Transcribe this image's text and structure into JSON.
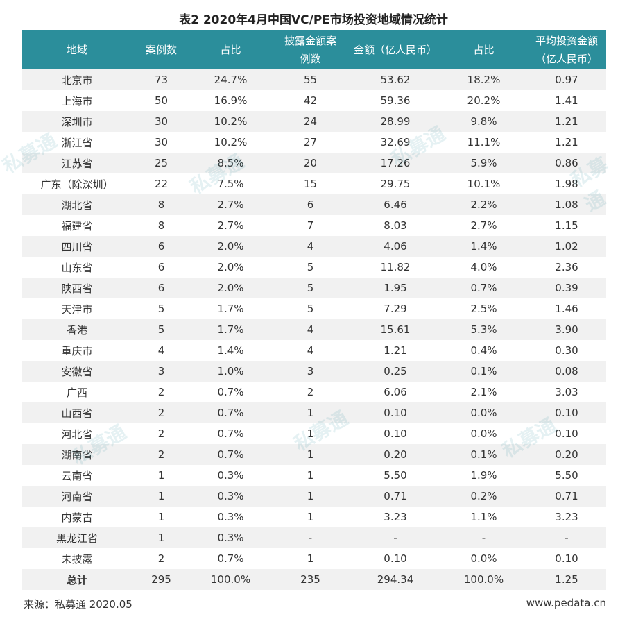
{
  "title": "表2  2020年4月中国VC/PE市场投资地域情况统计",
  "headers": [
    [
      "地域"
    ],
    [
      "案例数"
    ],
    [
      "占比"
    ],
    [
      "披露金额案",
      "例数"
    ],
    [
      "金额（亿人民币）"
    ],
    [
      "占比"
    ],
    [
      "平均投资金额",
      "（亿人民币）"
    ]
  ],
  "rows": [
    [
      "北京市",
      "73",
      "24.7%",
      "55",
      "53.62",
      "18.2%",
      "0.97"
    ],
    [
      "上海市",
      "50",
      "16.9%",
      "42",
      "59.36",
      "20.2%",
      "1.41"
    ],
    [
      "深圳市",
      "30",
      "10.2%",
      "24",
      "28.99",
      "9.8%",
      "1.21"
    ],
    [
      "浙江省",
      "30",
      "10.2%",
      "27",
      "32.69",
      "11.1%",
      "1.21"
    ],
    [
      "江苏省",
      "25",
      "8.5%",
      "20",
      "17.26",
      "5.9%",
      "0.86"
    ],
    [
      "广东（除深圳）",
      "22",
      "7.5%",
      "15",
      "29.75",
      "10.1%",
      "1.98"
    ],
    [
      "湖北省",
      "8",
      "2.7%",
      "6",
      "6.46",
      "2.2%",
      "1.08"
    ],
    [
      "福建省",
      "8",
      "2.7%",
      "7",
      "8.03",
      "2.7%",
      "1.15"
    ],
    [
      "四川省",
      "6",
      "2.0%",
      "4",
      "4.06",
      "1.4%",
      "1.02"
    ],
    [
      "山东省",
      "6",
      "2.0%",
      "5",
      "11.82",
      "4.0%",
      "2.36"
    ],
    [
      "陕西省",
      "6",
      "2.0%",
      "5",
      "1.95",
      "0.7%",
      "0.39"
    ],
    [
      "天津市",
      "5",
      "1.7%",
      "5",
      "7.29",
      "2.5%",
      "1.46"
    ],
    [
      "香港",
      "5",
      "1.7%",
      "4",
      "15.61",
      "5.3%",
      "3.90"
    ],
    [
      "重庆市",
      "4",
      "1.4%",
      "4",
      "1.21",
      "0.4%",
      "0.30"
    ],
    [
      "安徽省",
      "3",
      "1.0%",
      "3",
      "0.25",
      "0.1%",
      "0.08"
    ],
    [
      "广西",
      "2",
      "0.7%",
      "2",
      "6.06",
      "2.1%",
      "3.03"
    ],
    [
      "山西省",
      "2",
      "0.7%",
      "1",
      "0.10",
      "0.0%",
      "0.10"
    ],
    [
      "河北省",
      "2",
      "0.7%",
      "1",
      "0.10",
      "0.0%",
      "0.10"
    ],
    [
      "湖南省",
      "2",
      "0.7%",
      "1",
      "0.20",
      "0.1%",
      "0.20"
    ],
    [
      "云南省",
      "1",
      "0.3%",
      "1",
      "5.50",
      "1.9%",
      "5.50"
    ],
    [
      "河南省",
      "1",
      "0.3%",
      "1",
      "0.71",
      "0.2%",
      "0.71"
    ],
    [
      "内蒙古",
      "1",
      "0.3%",
      "1",
      "3.23",
      "1.1%",
      "3.23"
    ],
    [
      "黑龙江省",
      "1",
      "0.3%",
      "-",
      "-",
      "-",
      "-"
    ],
    [
      "未披露",
      "2",
      "0.7%",
      "1",
      "0.10",
      "0.0%",
      "0.10"
    ]
  ],
  "total": [
    "总计",
    "295",
    "100.0%",
    "235",
    "294.34",
    "100.0%",
    "1.25"
  ],
  "source": "来源：私募通 2020.05",
  "website": "www.pedata.cn",
  "watermark": "私募通",
  "colors": {
    "header": "#2b8e9b",
    "stripe": "#f1f1f1"
  }
}
